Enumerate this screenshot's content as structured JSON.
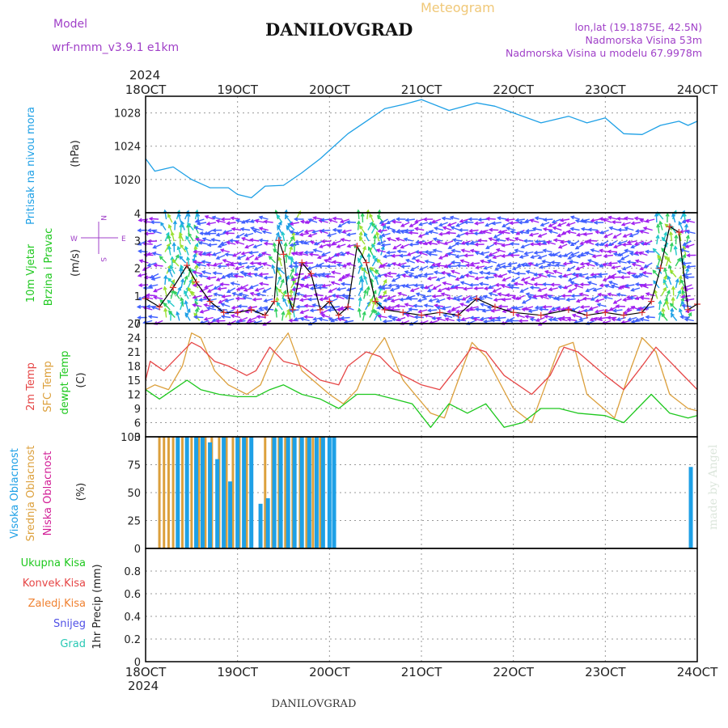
{
  "header": {
    "title": "DANILOVGRAD",
    "subtitle": "Meteogram",
    "model_label": "Model",
    "model_name": "wrf-nmm_v3.9.1  e1km",
    "lonlat": "lon,lat (19.1875E, 42.5N)",
    "altitude": "Nadmorska Visina 53m",
    "model_altitude": "Nadmorska Visina u modelu 67.9978m",
    "footer": "DANILOVGRAD",
    "watermark": "made by Angel",
    "year": "2024"
  },
  "colors": {
    "pressure": "#1ea0e6",
    "wind_label": "#1ec81e",
    "compass": "#a040c8",
    "temp2m": "#e64646",
    "sfc": "#dca03c",
    "dewpt": "#1ec81e",
    "cloud_high": "#1ea0e6",
    "cloud_mid": "#dca03c",
    "cloud_low": "#d21e96",
    "rain_total": "#1ec81e",
    "rain_conv": "#e64646",
    "rain_frozen": "#f08232",
    "snow": "#5050e6",
    "hail": "#28c8b4"
  },
  "chart_data": [
    {
      "type": "line",
      "panel": "pressure",
      "title": "",
      "ylabel": "Pritisak na nivou mora",
      "unit": "(hPa)",
      "x_ticks": [
        "18OCT",
        "19OCT",
        "20OCT",
        "21OCT",
        "22OCT",
        "23OCT",
        "24OCT"
      ],
      "ylim": [
        1016,
        1030
      ],
      "y_ticks": [
        "1020",
        "1024",
        "1028"
      ],
      "grid": true,
      "series": [
        {
          "name": "",
          "x_days": [
            0,
            0.1,
            0.3,
            0.5,
            0.7,
            0.9,
            1.0,
            1.15,
            1.3,
            1.5,
            1.7,
            1.9,
            2.0,
            2.2,
            2.4,
            2.6,
            2.8,
            3.0,
            3.3,
            3.6,
            3.8,
            4.0,
            4.3,
            4.6,
            4.8,
            5.0,
            5.2,
            5.4,
            5.6,
            5.8,
            5.9,
            6.0
          ],
          "values": [
            1022.5,
            1021,
            1021.5,
            1020,
            1019,
            1019,
            1018.2,
            1017.8,
            1019.2,
            1019.3,
            1020.8,
            1022.5,
            1023.5,
            1025.5,
            1027,
            1028.5,
            1029,
            1029.6,
            1028.3,
            1029.2,
            1028.8,
            1028,
            1026.8,
            1027.6,
            1026.8,
            1027.4,
            1025.5,
            1025.4,
            1026.5,
            1027,
            1026.5,
            1027
          ]
        }
      ]
    },
    {
      "type": "line",
      "panel": "wind",
      "title": "",
      "ylabel": "10m Vjetar",
      "ylabel2": "Brzina i Pravac",
      "unit": "(m/s)",
      "compass": {
        "n": "N",
        "s": "S",
        "e": "E",
        "w": "W"
      },
      "ylim": [
        0,
        4
      ],
      "y_ticks": [
        "0",
        "1",
        "2",
        "3",
        "4"
      ],
      "grid": true,
      "series": [
        {
          "name": "",
          "x_days": [
            0,
            0.15,
            0.3,
            0.45,
            0.55,
            0.7,
            0.85,
            1.0,
            1.15,
            1.3,
            1.4,
            1.45,
            1.5,
            1.55,
            1.6,
            1.7,
            1.8,
            1.9,
            2.0,
            2.1,
            2.2,
            2.3,
            2.4,
            2.5,
            2.6,
            2.8,
            3.0,
            3.2,
            3.4,
            3.6,
            3.8,
            4.0,
            4.3,
            4.6,
            4.8,
            5.0,
            5.2,
            5.4,
            5.5,
            5.6,
            5.7,
            5.8,
            5.9,
            6.0
          ],
          "values": [
            0.9,
            0.6,
            1.3,
            2.1,
            1.5,
            0.8,
            0.4,
            0.4,
            0.5,
            0.3,
            0.8,
            3.0,
            2.5,
            1.0,
            0.5,
            2.2,
            1.8,
            0.5,
            0.8,
            0.3,
            0.6,
            2.8,
            2.2,
            0.8,
            0.5,
            0.4,
            0.3,
            0.4,
            0.3,
            0.9,
            0.6,
            0.4,
            0.3,
            0.5,
            0.3,
            0.4,
            0.3,
            0.4,
            0.8,
            2.0,
            3.5,
            3.3,
            0.5,
            0.7
          ]
        }
      ]
    },
    {
      "type": "line",
      "panel": "temperature",
      "title": "",
      "ylabels": [
        "2m Temp",
        "SFC Temp",
        "dewpt Temp"
      ],
      "unit": "(C)",
      "ylim": [
        3,
        27
      ],
      "y_ticks": [
        "3",
        "6",
        "9",
        "12",
        "15",
        "18",
        "21",
        "24",
        "27"
      ],
      "grid": true,
      "series": [
        {
          "name": "2m Temp",
          "x_days": [
            0,
            0.05,
            0.2,
            0.35,
            0.5,
            0.6,
            0.75,
            0.9,
            1.1,
            1.2,
            1.35,
            1.5,
            1.7,
            1.9,
            2.1,
            2.2,
            2.4,
            2.55,
            2.7,
            3.0,
            3.2,
            3.4,
            3.55,
            3.7,
            3.9,
            4.2,
            4.4,
            4.55,
            4.7,
            5.0,
            5.2,
            5.4,
            5.55,
            5.7,
            5.9,
            6.0
          ],
          "values": [
            15,
            19,
            17,
            20,
            23,
            22,
            19,
            18,
            16,
            17,
            22,
            19,
            18,
            15,
            14,
            18,
            21,
            20,
            17,
            14,
            13,
            18,
            22,
            21,
            16,
            12,
            16,
            22,
            21,
            16,
            13,
            18,
            22,
            19,
            15,
            13
          ]
        },
        {
          "name": "SFC Temp",
          "x_days": [
            0,
            0.1,
            0.25,
            0.4,
            0.5,
            0.6,
            0.75,
            0.9,
            1.1,
            1.25,
            1.4,
            1.55,
            1.7,
            2.0,
            2.15,
            2.3,
            2.45,
            2.6,
            2.8,
            3.1,
            3.25,
            3.4,
            3.55,
            3.7,
            4.0,
            4.2,
            4.35,
            4.5,
            4.65,
            4.8,
            5.1,
            5.25,
            5.4,
            5.55,
            5.7,
            5.9,
            6.0
          ],
          "values": [
            13,
            14,
            13,
            18,
            25,
            24,
            17,
            14,
            12,
            14,
            21,
            25,
            17,
            12,
            10,
            13,
            20,
            24,
            15,
            8,
            7,
            15,
            23,
            20,
            9,
            6,
            14,
            22,
            23,
            12,
            7,
            16,
            24,
            21,
            12,
            9,
            8.5
          ]
        },
        {
          "name": "dewpt Temp",
          "x_days": [
            0,
            0.15,
            0.3,
            0.45,
            0.6,
            0.8,
            1.0,
            1.2,
            1.35,
            1.5,
            1.7,
            1.9,
            2.1,
            2.3,
            2.5,
            2.7,
            2.9,
            3.1,
            3.3,
            3.5,
            3.7,
            3.9,
            4.1,
            4.3,
            4.5,
            4.7,
            5.0,
            5.2,
            5.35,
            5.5,
            5.7,
            5.9,
            6.0
          ],
          "values": [
            13,
            11,
            13,
            15,
            13,
            12,
            11.5,
            11.5,
            13,
            14,
            12,
            11,
            9,
            12,
            12,
            11,
            10,
            5,
            10,
            8,
            10,
            5,
            6,
            9,
            9,
            8,
            7.5,
            6,
            9,
            12,
            8,
            7,
            7.5
          ]
        }
      ]
    },
    {
      "type": "bar",
      "panel": "clouds",
      "title": "",
      "ylabels": [
        "Visoka Oblacnost",
        "Srednja Oblacnost",
        "Niska Oblacnost"
      ],
      "unit": "(%)",
      "ylim": [
        0,
        100
      ],
      "y_ticks": [
        "0",
        "25",
        "50",
        "75",
        "100"
      ],
      "grid": true,
      "series": [
        {
          "name": "Visoka Oblacnost",
          "x_days": [
            0.35,
            0.45,
            0.55,
            0.62,
            0.7,
            0.78,
            0.85,
            0.92,
            1.0,
            1.07,
            1.15,
            1.25,
            1.33,
            1.4,
            1.47,
            1.55,
            1.62,
            1.7,
            1.78,
            1.86,
            1.93,
            2.0,
            2.05,
            5.93
          ],
          "values": [
            100,
            100,
            100,
            100,
            95,
            80,
            100,
            60,
            100,
            100,
            100,
            40,
            45,
            100,
            100,
            100,
            100,
            100,
            100,
            100,
            100,
            100,
            100,
            73
          ]
        },
        {
          "name": "Srednja Oblacnost",
          "x_days": [
            0.15,
            0.2,
            0.25,
            0.3,
            0.4,
            0.5,
            0.58,
            0.65,
            0.72,
            0.8,
            0.88,
            0.95,
            1.02,
            1.1,
            1.3,
            1.38,
            1.45,
            1.52,
            1.6,
            1.68,
            1.75,
            1.82,
            1.9
          ],
          "values": [
            100,
            100,
            100,
            100,
            100,
            100,
            100,
            100,
            100,
            100,
            100,
            100,
            100,
            100,
            100,
            100,
            100,
            100,
            100,
            100,
            100,
            100,
            100
          ]
        },
        {
          "name": "Niska Oblacnost",
          "x_days": [],
          "values": []
        }
      ]
    },
    {
      "type": "bar",
      "panel": "precip",
      "title": "",
      "ylabels": [
        "Ukupna Kisa",
        "Konvek.Kisa",
        "Zaledj.Kisa",
        "Snijeg",
        "Grad"
      ],
      "unit": "1hr Precip (mm)",
      "ylim": [
        0,
        1
      ],
      "y_ticks": [
        "0",
        "0.2",
        "0.4",
        "0.6",
        "0.8"
      ],
      "grid": true,
      "series": [
        {
          "name": "Ukupna Kisa",
          "x_days": [],
          "values": []
        }
      ]
    }
  ]
}
